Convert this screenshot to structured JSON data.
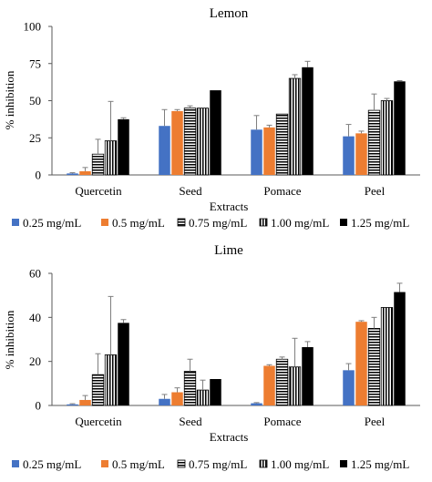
{
  "patterns": {
    "0.75 mg/mL": "horizontal-stripes",
    "1.00 mg/mL": "vertical-stripes"
  },
  "chart_data": [
    {
      "type": "bar",
      "title": "Lemon",
      "xlabel": "Extracts",
      "ylabel": "% inhibition",
      "ylim": [
        0,
        100
      ],
      "yticks": [
        0,
        25,
        50,
        75,
        100
      ],
      "categories": [
        "Quercetin",
        "Seed",
        "Pomace",
        "Peel"
      ],
      "legend_position": "bottom",
      "series": [
        {
          "name": "0.25 mg/mL",
          "color": "#4472C4",
          "fill": "solid",
          "values": [
            1,
            33,
            30.5,
            26
          ],
          "errors": [
            0.5,
            11,
            9.5,
            8
          ]
        },
        {
          "name": "0.5 mg/mL",
          "color": "#ED7D31",
          "fill": "solid",
          "values": [
            2.5,
            43,
            32,
            28
          ],
          "errors": [
            2.5,
            1,
            1.5,
            1.5
          ]
        },
        {
          "name": "0.75 mg/mL",
          "color": "#000000",
          "fill": "horizontal-stripes",
          "values": [
            14,
            45,
            41,
            43.5
          ],
          "errors": [
            10,
            1.5,
            0,
            11
          ]
        },
        {
          "name": "1.00 mg/mL",
          "color": "#000000",
          "fill": "vertical-stripes",
          "values": [
            23,
            45,
            65,
            50
          ],
          "errors": [
            26.5,
            0,
            2.5,
            1.5
          ]
        },
        {
          "name": "1.25 mg/mL",
          "color": "#000000",
          "fill": "solid",
          "values": [
            37.5,
            57,
            72.5,
            63
          ],
          "errors": [
            1,
            0,
            4,
            0.5
          ]
        }
      ]
    },
    {
      "type": "bar",
      "title": "Lime",
      "xlabel": "Extracts",
      "ylabel": "% inhibition",
      "ylim": [
        0,
        60
      ],
      "yticks": [
        0,
        20,
        40,
        60
      ],
      "categories": [
        "Quercetin",
        "Seed",
        "Pomace",
        "Peel"
      ],
      "legend_position": "bottom",
      "series": [
        {
          "name": "0.25 mg/mL",
          "color": "#4472C4",
          "fill": "solid",
          "values": [
            0.5,
            3,
            1,
            16
          ],
          "errors": [
            0.3,
            2,
            0.3,
            3
          ]
        },
        {
          "name": "0.5 mg/mL",
          "color": "#ED7D31",
          "fill": "solid",
          "values": [
            2.5,
            6,
            18,
            38
          ],
          "errors": [
            2,
            2,
            0.5,
            0.5
          ]
        },
        {
          "name": "0.75 mg/mL",
          "color": "#000000",
          "fill": "horizontal-stripes",
          "values": [
            14,
            15.5,
            21,
            35
          ],
          "errors": [
            9.5,
            5.5,
            1,
            5
          ]
        },
        {
          "name": "1.00 mg/mL",
          "color": "#000000",
          "fill": "vertical-stripes",
          "values": [
            23,
            7,
            17.5,
            44.5
          ],
          "errors": [
            26.5,
            4.5,
            13,
            0
          ]
        },
        {
          "name": "1.25 mg/mL",
          "color": "#000000",
          "fill": "solid",
          "values": [
            37.5,
            12,
            26.5,
            51.5
          ],
          "errors": [
            1.5,
            0,
            2.5,
            4
          ]
        }
      ]
    }
  ]
}
